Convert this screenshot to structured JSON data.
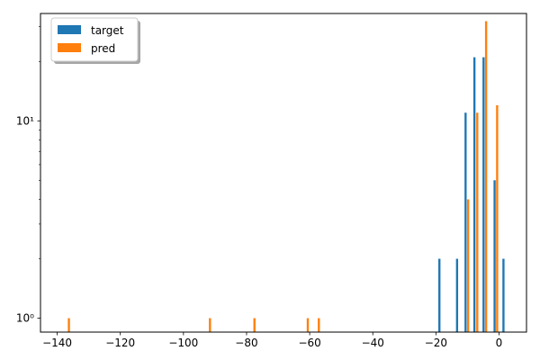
{
  "chart_data": {
    "type": "bar",
    "title": "",
    "xlabel": "",
    "ylabel": "",
    "y_scale": "log",
    "xlim": [
      -145.3,
      8.7
    ],
    "ylim": [
      0.85,
      35
    ],
    "grid": false,
    "legend_placement": "top-left",
    "x_ticks": [
      -140,
      -120,
      -100,
      -80,
      -60,
      -40,
      -20,
      0
    ],
    "x_tick_labels": [
      "−140",
      "−120",
      "−100",
      "−80",
      "−60",
      "−40",
      "−20",
      "0"
    ],
    "y_ticks": [
      1,
      10
    ],
    "y_tick_labels": [
      "10⁰",
      "10¹"
    ],
    "series": [
      {
        "name": "target",
        "color": "#1f77b4",
        "bars": [
          {
            "x": -18.9,
            "value": 2
          },
          {
            "x": -13.3,
            "value": 2
          },
          {
            "x": -10.6,
            "value": 11
          },
          {
            "x": -7.8,
            "value": 21
          },
          {
            "x": -4.9,
            "value": 21
          },
          {
            "x": -1.4,
            "value": 5
          },
          {
            "x": 1.4,
            "value": 2
          }
        ]
      },
      {
        "name": "pred",
        "color": "#ff7f0e",
        "bars": [
          {
            "x": -136.3,
            "value": 1
          },
          {
            "x": -91.6,
            "value": 1
          },
          {
            "x": -77.5,
            "value": 1
          },
          {
            "x": -60.6,
            "value": 1
          },
          {
            "x": -57.1,
            "value": 1
          },
          {
            "x": -9.8,
            "value": 4
          },
          {
            "x": -6.9,
            "value": 11
          },
          {
            "x": -4.1,
            "value": 32
          },
          {
            "x": -0.6,
            "value": 12
          }
        ]
      }
    ]
  }
}
